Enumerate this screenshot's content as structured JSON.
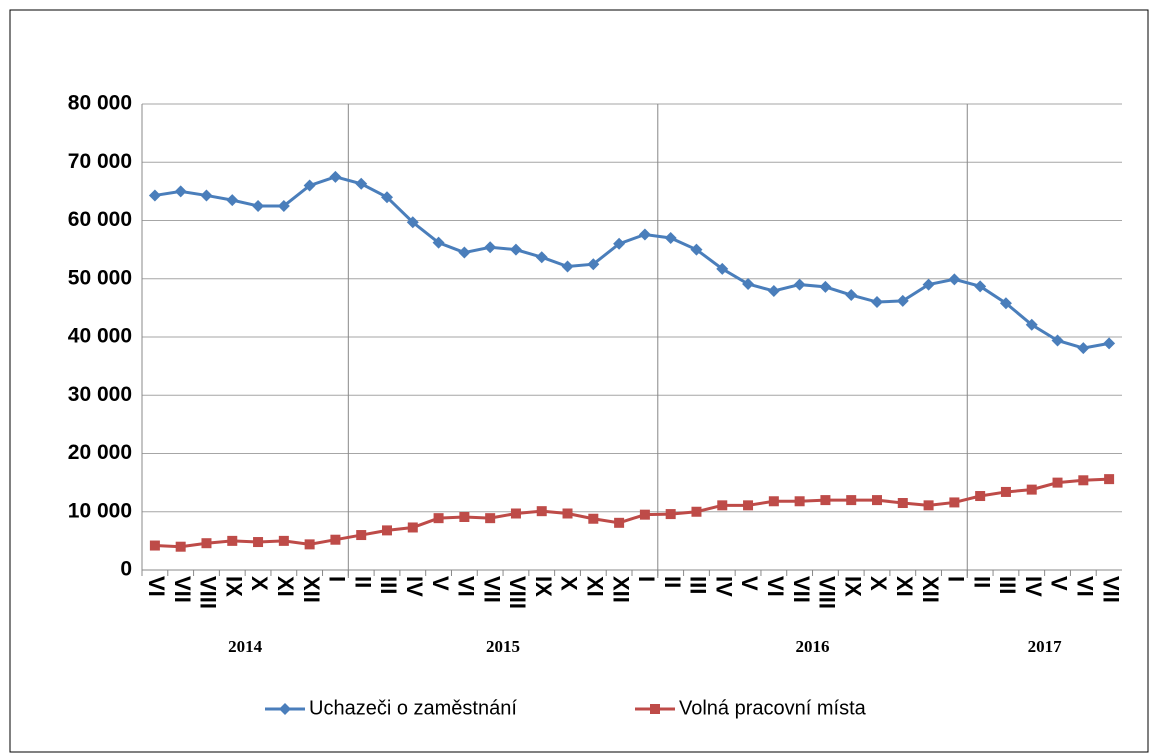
{
  "chart_data": {
    "type": "line",
    "categories": [
      "VI",
      "VII",
      "VIII",
      "IX",
      "X",
      "XI",
      "XII",
      "I",
      "II",
      "III",
      "IV",
      "V",
      "VI",
      "VII",
      "VIII",
      "IX",
      "X",
      "XI",
      "XII",
      "I",
      "II",
      "III",
      "IV",
      "V",
      "VI",
      "VII",
      "VIII",
      "IX",
      "X",
      "XI",
      "XII",
      "I",
      "II",
      "III",
      "IV",
      "V",
      "VI",
      "VII"
    ],
    "groups": [
      {
        "name": "2014",
        "count": 8
      },
      {
        "name": "2015",
        "count": 12
      },
      {
        "name": "2016",
        "count": 12
      },
      {
        "name": "2017",
        "count": 6
      }
    ],
    "series": [
      {
        "name": "Uchazeči o zaměstnání",
        "color": "#4a7ebb",
        "marker": "diamond",
        "values": [
          64300,
          65000,
          64300,
          63500,
          62500,
          62500,
          66000,
          67500,
          66300,
          64000,
          59700,
          56200,
          54500,
          55400,
          55000,
          53700,
          52100,
          52500,
          56000,
          57600,
          57000,
          55000,
          51700,
          49100,
          47900,
          49000,
          48600,
          47200,
          46000,
          46200,
          49000,
          49900,
          48700,
          45800,
          42100,
          39400,
          38100,
          38900
        ]
      },
      {
        "name": "Volná pracovní místa",
        "color": "#be4b48",
        "marker": "square",
        "values": [
          4200,
          4000,
          4600,
          5000,
          4800,
          5000,
          4400,
          5200,
          6000,
          6800,
          7300,
          8900,
          9100,
          8900,
          9700,
          10100,
          9700,
          8800,
          8100,
          9500,
          9600,
          10000,
          11100,
          11100,
          11800,
          11800,
          12000,
          12000,
          12000,
          11500,
          11100,
          11600,
          12700,
          13400,
          13800,
          15000,
          15400,
          15600
        ]
      }
    ],
    "ylim": [
      0,
      80000
    ],
    "yticks": [
      0,
      {
        "value": 10000,
        "label": "10 000"
      },
      {
        "value": 20000,
        "label": "20 000"
      },
      {
        "value": 30000,
        "label": "30 000"
      },
      {
        "value": 40000,
        "label": "40 000"
      },
      {
        "value": 50000,
        "label": "50 000"
      },
      {
        "value": 60000,
        "label": "60 000"
      },
      {
        "value": 70000,
        "label": "70 000"
      },
      {
        "value": 80000,
        "label": "80 000"
      }
    ],
    "grid": true
  }
}
